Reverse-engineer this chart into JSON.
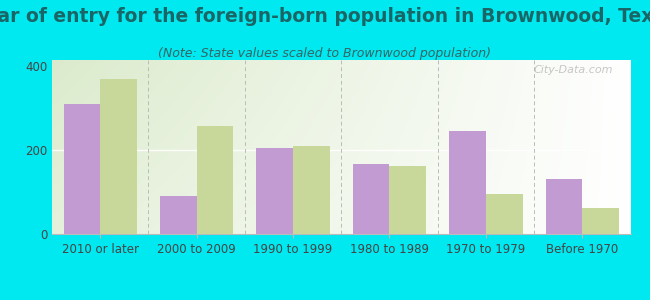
{
  "title": "Year of entry for the foreign-born population in Brownwood, Texas",
  "subtitle": "(Note: State values scaled to Brownwood population)",
  "categories": [
    "2010 or later",
    "2000 to 2009",
    "1990 to 1999",
    "1980 to 1989",
    "1970 to 1979",
    "Before 1970"
  ],
  "brownwood_values": [
    310,
    90,
    205,
    168,
    245,
    130
  ],
  "texas_values": [
    370,
    258,
    210,
    162,
    95,
    63
  ],
  "brownwood_color": "#c39bd3",
  "texas_color": "#c8d89a",
  "background_outer": "#00e8f0",
  "ylim": [
    0,
    415
  ],
  "yticks": [
    0,
    200,
    400
  ],
  "bar_width": 0.38,
  "title_fontsize": 13.5,
  "subtitle_fontsize": 9,
  "legend_fontsize": 10,
  "tick_fontsize": 8.5,
  "watermark_text": "City-Data.com"
}
